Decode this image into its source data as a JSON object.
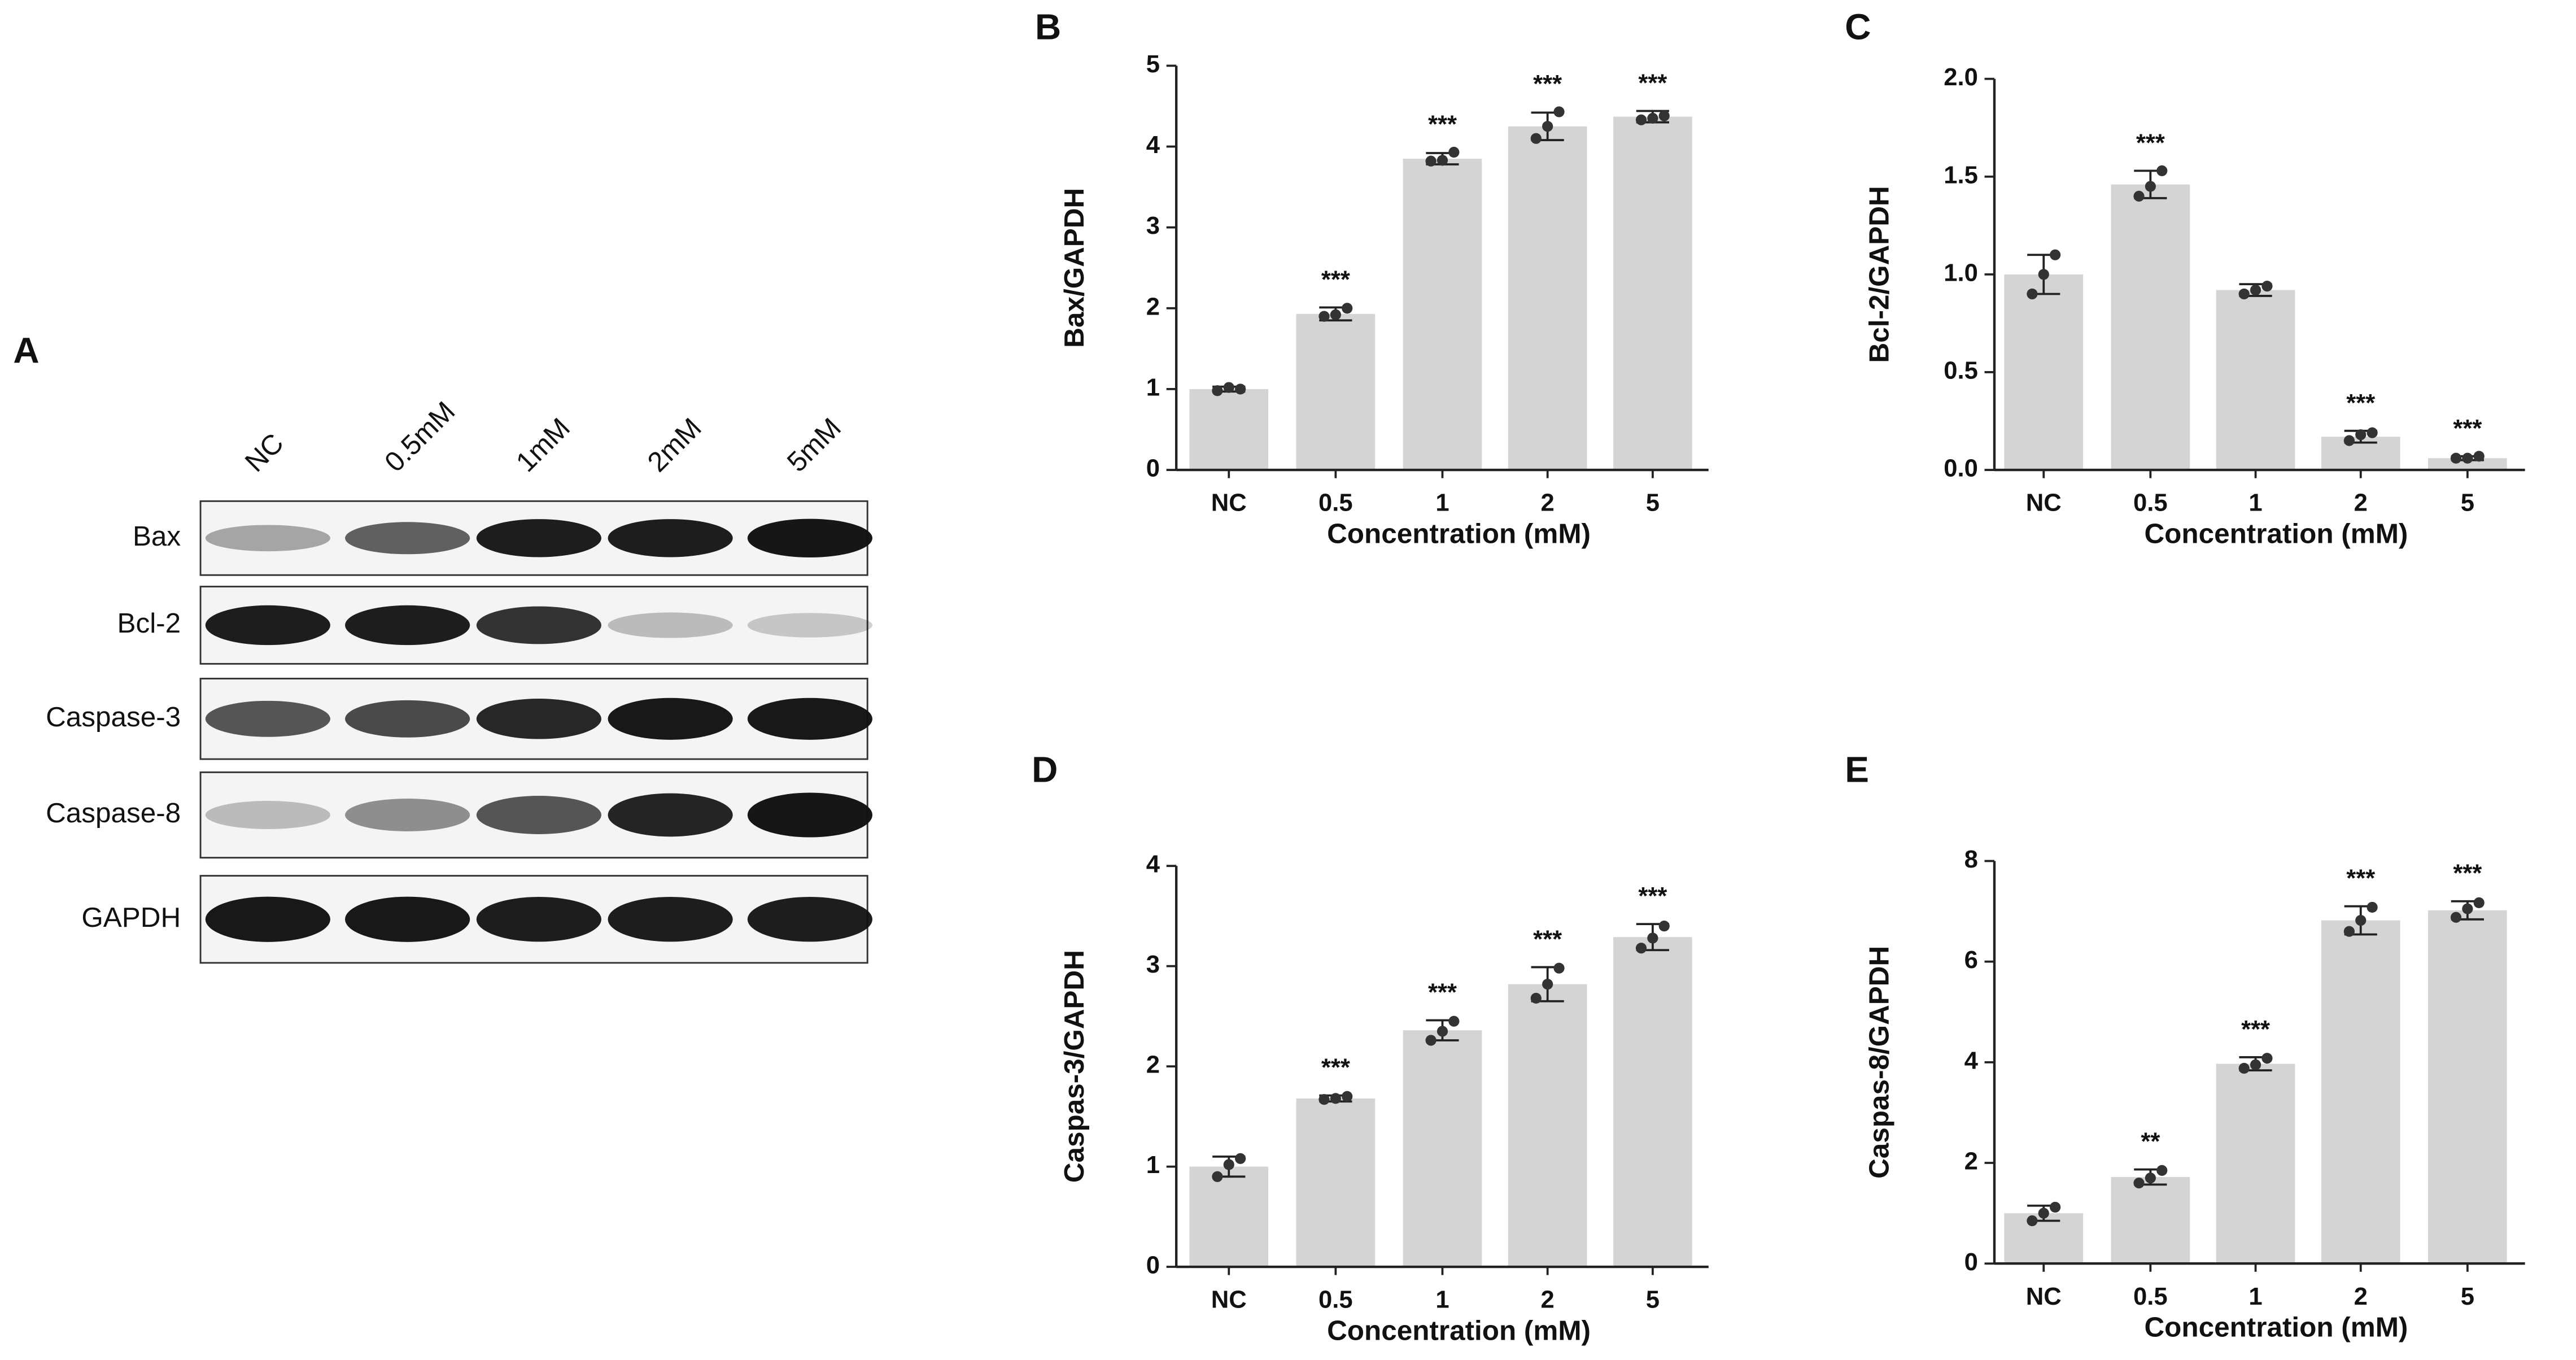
{
  "blot": {
    "label": "A",
    "lanes": [
      "NC",
      "0.5mM",
      "1mM",
      "2mM",
      "5mM"
    ],
    "proteins": [
      "Bax",
      "Bcl-2",
      "Caspase-3",
      "Caspase-8",
      "GAPDH"
    ]
  },
  "chart_data": [
    {
      "type": "bar",
      "panel": "B",
      "ylabel": "Bax/GAPDH",
      "xlabel": "Concentration (mM)",
      "color": "#d4d4d4",
      "categories": [
        "NC",
        "0.5",
        "1",
        "2",
        "5"
      ],
      "values": [
        1.0,
        1.93,
        3.85,
        4.25,
        4.37
      ],
      "errors": [
        0.03,
        0.08,
        0.07,
        0.17,
        0.07
      ],
      "points": [
        [
          0.98,
          1.02,
          1.0
        ],
        [
          1.9,
          1.92,
          2.0
        ],
        [
          3.82,
          3.83,
          3.93
        ],
        [
          4.1,
          4.25,
          4.43
        ],
        [
          4.33,
          4.35,
          4.38
        ]
      ],
      "annotations": [
        null,
        "***",
        "***",
        "***",
        "***"
      ],
      "ylim": [
        0,
        5
      ],
      "yticks": [
        0,
        1,
        2,
        3,
        4,
        5
      ]
    },
    {
      "type": "bar",
      "panel": "C",
      "ylabel": "Bcl-2/GAPDH",
      "xlabel": "Concentration (mM)",
      "color": "#d4d4d4",
      "categories": [
        "NC",
        "0.5",
        "1",
        "2",
        "5"
      ],
      "values": [
        1.0,
        1.46,
        0.92,
        0.17,
        0.06
      ],
      "errors": [
        0.1,
        0.07,
        0.03,
        0.03,
        0.01
      ],
      "points": [
        [
          0.9,
          1.0,
          1.1
        ],
        [
          1.4,
          1.45,
          1.53
        ],
        [
          0.9,
          0.92,
          0.94
        ],
        [
          0.15,
          0.18,
          0.19
        ],
        [
          0.06,
          0.06,
          0.07
        ]
      ],
      "annotations": [
        null,
        "***",
        null,
        "***",
        "***"
      ],
      "ylim": [
        0,
        2
      ],
      "yticks": [
        {
          "value": 0,
          "label": "0.0"
        },
        0.5,
        {
          "value": 1,
          "label": "1.0"
        },
        1.5,
        {
          "value": 2,
          "label": "2.0"
        }
      ]
    },
    {
      "type": "bar",
      "panel": "D",
      "ylabel": "Caspas-3/GAPDH",
      "xlabel": "Concentration (mM)",
      "color": "#d4d4d4",
      "categories": [
        "NC",
        "0.5",
        "1",
        "2",
        "5"
      ],
      "values": [
        1.0,
        1.68,
        2.36,
        2.82,
        3.29
      ],
      "errors": [
        0.1,
        0.03,
        0.1,
        0.17,
        0.13
      ],
      "points": [
        [
          0.9,
          1.02,
          1.08
        ],
        [
          1.67,
          1.68,
          1.7
        ],
        [
          2.26,
          2.35,
          2.45
        ],
        [
          2.68,
          2.82,
          2.98
        ],
        [
          3.18,
          3.28,
          3.4
        ]
      ],
      "annotations": [
        null,
        "***",
        "***",
        "***",
        "***"
      ],
      "ylim": [
        0,
        4
      ],
      "yticks": [
        0,
        1,
        2,
        3,
        4
      ]
    },
    {
      "type": "bar",
      "panel": "E",
      "ylabel": "Caspas-8/GAPDH",
      "xlabel": "Concentration (mM)",
      "color": "#d4d4d4",
      "categories": [
        "NC",
        "0.5",
        "1",
        "2",
        "5"
      ],
      "values": [
        1.0,
        1.72,
        3.97,
        6.82,
        7.02
      ],
      "errors": [
        0.15,
        0.15,
        0.13,
        0.28,
        0.18
      ],
      "points": [
        [
          0.85,
          1.0,
          1.12
        ],
        [
          1.6,
          1.7,
          1.85
        ],
        [
          3.88,
          3.95,
          4.08
        ],
        [
          6.6,
          6.82,
          7.08
        ],
        [
          6.88,
          7.05,
          7.17
        ]
      ],
      "annotations": [
        null,
        "**",
        "***",
        "***",
        "***"
      ],
      "ylim": [
        0,
        8
      ],
      "yticks": [
        0,
        2,
        4,
        6,
        8
      ]
    }
  ]
}
